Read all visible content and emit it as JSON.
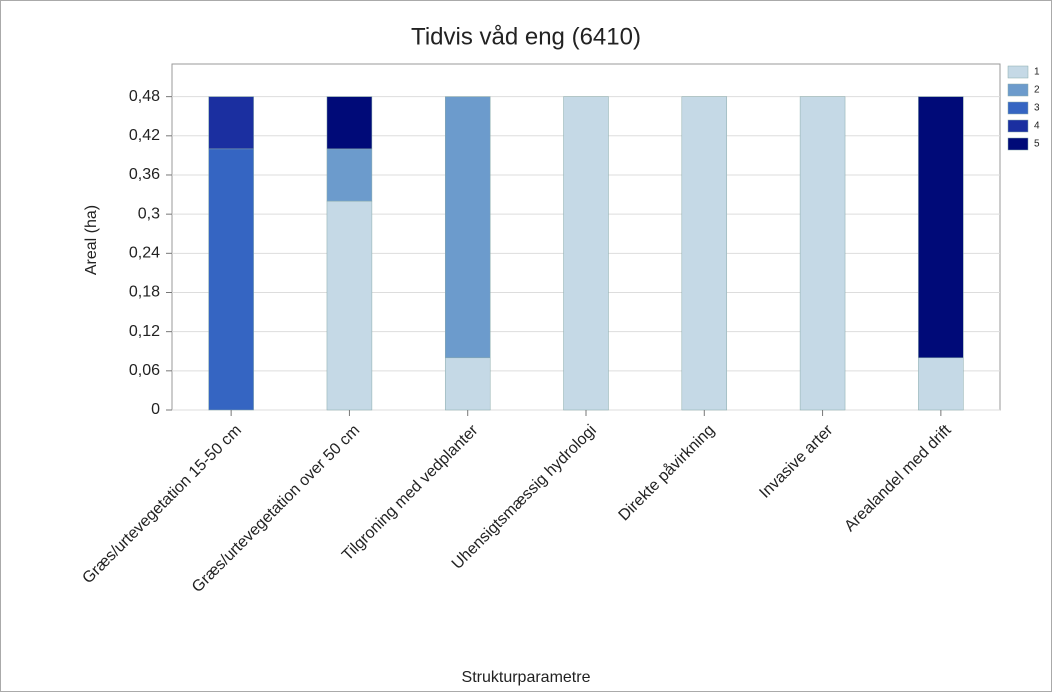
{
  "chart_data": {
    "type": "stacked_bar",
    "title": "Tidvis våd eng (6410)",
    "x_label": "Strukturparametre",
    "y_label": "Areal (ha)",
    "categories": [
      "Græs/urtevegetation 15-50 cm",
      "Græs/urtevegetation over 50 cm",
      "Tilgroning med vedplanter",
      "Uhensigtsmæssig hydrologi",
      "Direkte påvirkning",
      "Invasive arter",
      "Arealandel med drift"
    ],
    "series": [
      {
        "name": "1",
        "color": "#c5d9e6",
        "values": [
          0,
          0.32,
          0.08,
          0.48,
          0.48,
          0.48,
          0.08
        ]
      },
      {
        "name": "2",
        "color": "#6c9bcc",
        "values": [
          0,
          0.08,
          0.4,
          0,
          0,
          0,
          0
        ]
      },
      {
        "name": "3",
        "color": "#3565c2",
        "values": [
          0.4,
          0,
          0,
          0,
          0,
          0,
          0
        ]
      },
      {
        "name": "4",
        "color": "#1b2fa0",
        "values": [
          0.08,
          0,
          0,
          0,
          0,
          0,
          0
        ]
      },
      {
        "name": "5",
        "color": "#000a78",
        "values": [
          0,
          0.08,
          0,
          0,
          0,
          0,
          0.4
        ]
      }
    ],
    "ylim": [
      0,
      0.53
    ],
    "yticks": [
      0,
      {
        "value": 0.06,
        "label": "0,06"
      },
      {
        "value": 0.12,
        "label": "0,12"
      },
      {
        "value": 0.18,
        "label": "0,18"
      },
      {
        "value": 0.24,
        "label": "0,24"
      },
      {
        "value": 0.3,
        "label": "0,3"
      },
      {
        "value": 0.36,
        "label": "0,36"
      },
      {
        "value": 0.42,
        "label": "0,42"
      },
      {
        "value": 0.48,
        "label": "0,48"
      }
    ],
    "grid": true,
    "legend": "right"
  }
}
